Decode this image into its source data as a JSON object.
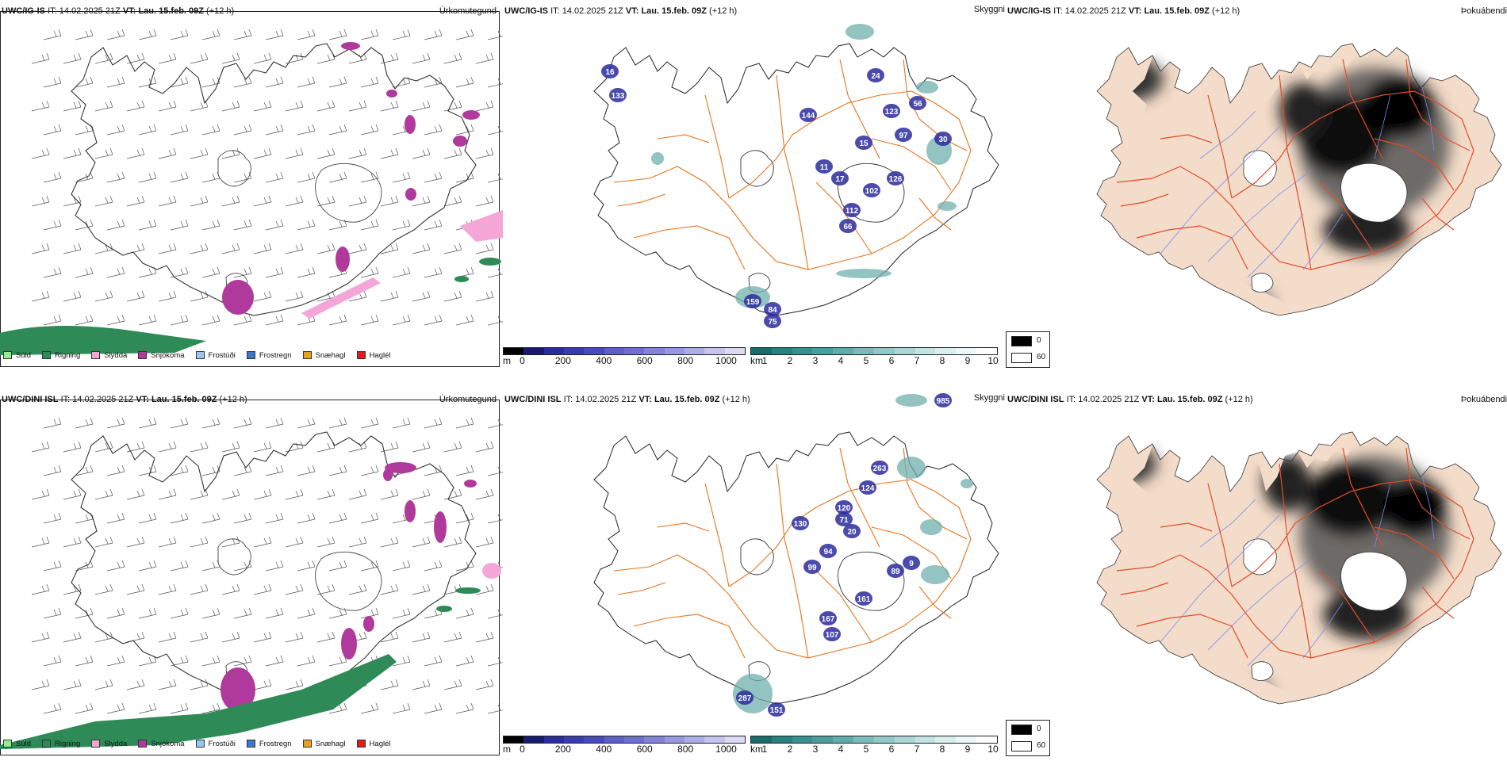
{
  "rows": [
    {
      "model": "UWC/IG-IS",
      "it_label": "IT:",
      "it_value": "14.02.2025 21Z",
      "vt_label": "VT:",
      "vt_value": "Lau. 15.feb. 09Z",
      "lead": "(+12 h)",
      "cloud_labels": [
        "16",
        "133",
        "144",
        "24",
        "123",
        "56",
        "97",
        "30",
        "15",
        "11",
        "17",
        "126",
        "102",
        "112",
        "66",
        "159",
        "84",
        "75"
      ],
      "fog_extra": ""
    },
    {
      "model": "UWC/DINI ISL",
      "it_label": "IT:",
      "it_value": "14.02.2025 21Z",
      "vt_label": "VT:",
      "vt_value": "Lau. 15.feb. 09Z",
      "lead": "(+12 h)",
      "cloud_labels": [
        "985",
        "263",
        "124",
        "120",
        "71",
        "130",
        "20",
        "94",
        "99",
        "89",
        "161",
        "167",
        "107",
        "287",
        "151",
        "9"
      ],
      "fog_extra": ""
    }
  ],
  "panel_titles": {
    "precip": "Úrkomutegund",
    "clouds": "Skyggni",
    "fog": "Þokuábendi"
  },
  "precip_legend": [
    {
      "label": "Súld",
      "color": "#90ee90"
    },
    {
      "label": "Rigning",
      "color": "#2e8b57"
    },
    {
      "label": "Slydda",
      "color": "#f4a6d7"
    },
    {
      "label": "Snjókoma",
      "color": "#b03a9c"
    },
    {
      "label": "Frostúði",
      "color": "#9cc6f0"
    },
    {
      "label": "Frostregn",
      "color": "#3a78c9"
    },
    {
      "label": "Snæhagl",
      "color": "#e8a11e"
    },
    {
      "label": "Haglél",
      "color": "#e01b1b"
    }
  ],
  "cloud_bar": {
    "unit": "m",
    "colors": [
      "#000000",
      "#1a1a6e",
      "#2c2c9c",
      "#3b3bb0",
      "#4a4abd",
      "#5e5ec6",
      "#6f6fcf",
      "#8383d6",
      "#9898de",
      "#acace6",
      "#c4c4ee",
      "#dadaf5"
    ],
    "ticks": [
      "0",
      "200",
      "400",
      "600",
      "800",
      "1000"
    ]
  },
  "vis_bar": {
    "unit": "km",
    "colors": [
      "#1b6b6b",
      "#2a7f7f",
      "#3a9090",
      "#4d9d9d",
      "#63abab",
      "#7bbaba",
      "#93c8c8",
      "#acd6d6",
      "#c4e3e3",
      "#dbeeee",
      "#eef7f7",
      "#ffffff"
    ],
    "ticks": [
      "1",
      "2",
      "3",
      "4",
      "5",
      "6",
      "7",
      "8",
      "9",
      "10"
    ]
  },
  "fog_legend": [
    {
      "label": "0",
      "color": "#000000"
    },
    {
      "label": "60",
      "color": "#ffffff"
    }
  ],
  "colors": {
    "land_fog": "#f3dcc9",
    "roads": "#e8731c",
    "rivers": "#7a8cf0",
    "roads_fog": "#e34b2a"
  }
}
